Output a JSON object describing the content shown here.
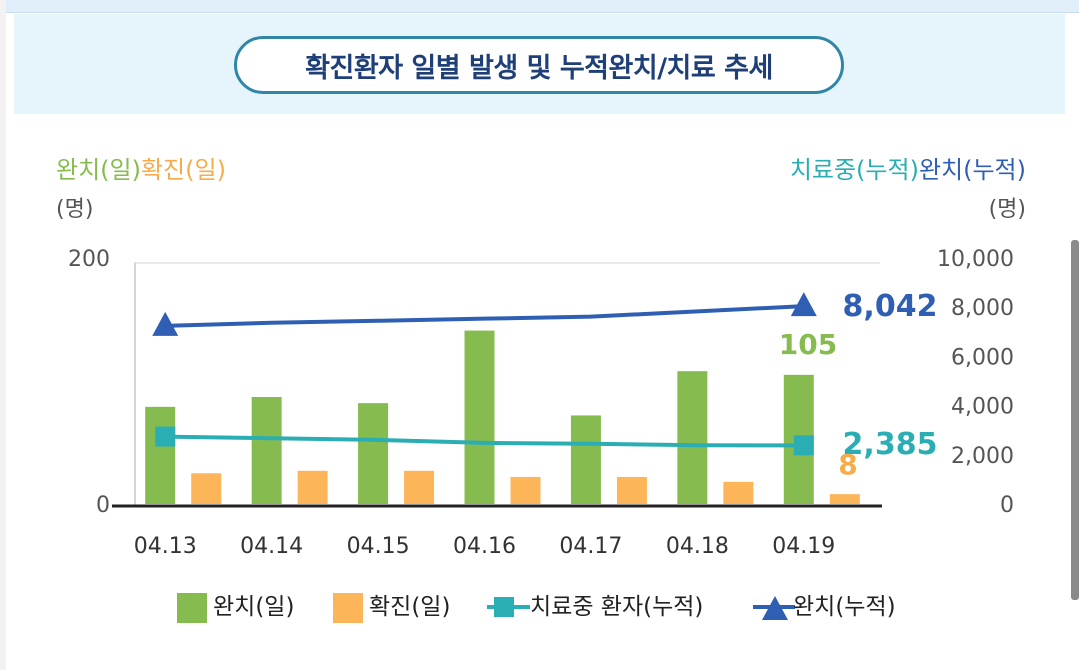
{
  "title": "확진환자 일별 발생 및 누적완치/치료 추세",
  "left_axis": {
    "label_part1": "완치(일)",
    "label_part2": "확진(일)",
    "unit": "(명)",
    "ticks": [
      "200",
      "0"
    ],
    "color1": "#86bc4f",
    "color2": "#f6ac4b"
  },
  "right_axis": {
    "label_part1": "치료중(누적)",
    "label_part2": "완치(누적)",
    "unit": "(명)",
    "ticks": [
      "10,000",
      "8,000",
      "6,000",
      "4,000",
      "2,000",
      "0"
    ],
    "color1": "#2aaeb3",
    "color2": "#2f5fb3"
  },
  "chart_data": {
    "type": "bar",
    "categories": [
      "04.13",
      "04.14",
      "04.15",
      "04.16",
      "04.17",
      "04.18",
      "04.19"
    ],
    "ylim_left": [
      0,
      200
    ],
    "ylim_right": [
      0,
      10000
    ],
    "series": [
      {
        "name": "완치(일)",
        "type": "bar",
        "axis": "left",
        "color": "#86bc4f",
        "values": [
          79,
          87,
          82,
          141,
          72,
          108,
          105
        ]
      },
      {
        "name": "확진(일)",
        "type": "bar",
        "axis": "left",
        "color": "#fdb55a",
        "values": [
          25,
          27,
          27,
          22,
          22,
          18,
          8
        ]
      },
      {
        "name": "치료중 환자(누적)",
        "type": "line",
        "axis": "right",
        "color": "#2aaeb3",
        "marker": "square",
        "values": [
          2741,
          2672,
          2606,
          2484,
          2449,
          2386,
          2385
        ]
      },
      {
        "name": "완치(누적)",
        "type": "line",
        "axis": "right",
        "color": "#2f5fb3",
        "marker": "triangle",
        "values": [
          7243,
          7368,
          7447,
          7534,
          7616,
          7829,
          8042
        ]
      }
    ],
    "data_labels": {
      "cured_daily_last": "105",
      "confirmed_daily_last": "8",
      "treating_cum_last": "2,385",
      "cured_cum_last": "8,042"
    },
    "legend": [
      "완치(일)",
      "확진(일)",
      "치료중 환자(누적)",
      "완치(누적)"
    ],
    "legend_position": "bottom",
    "grid": false
  }
}
